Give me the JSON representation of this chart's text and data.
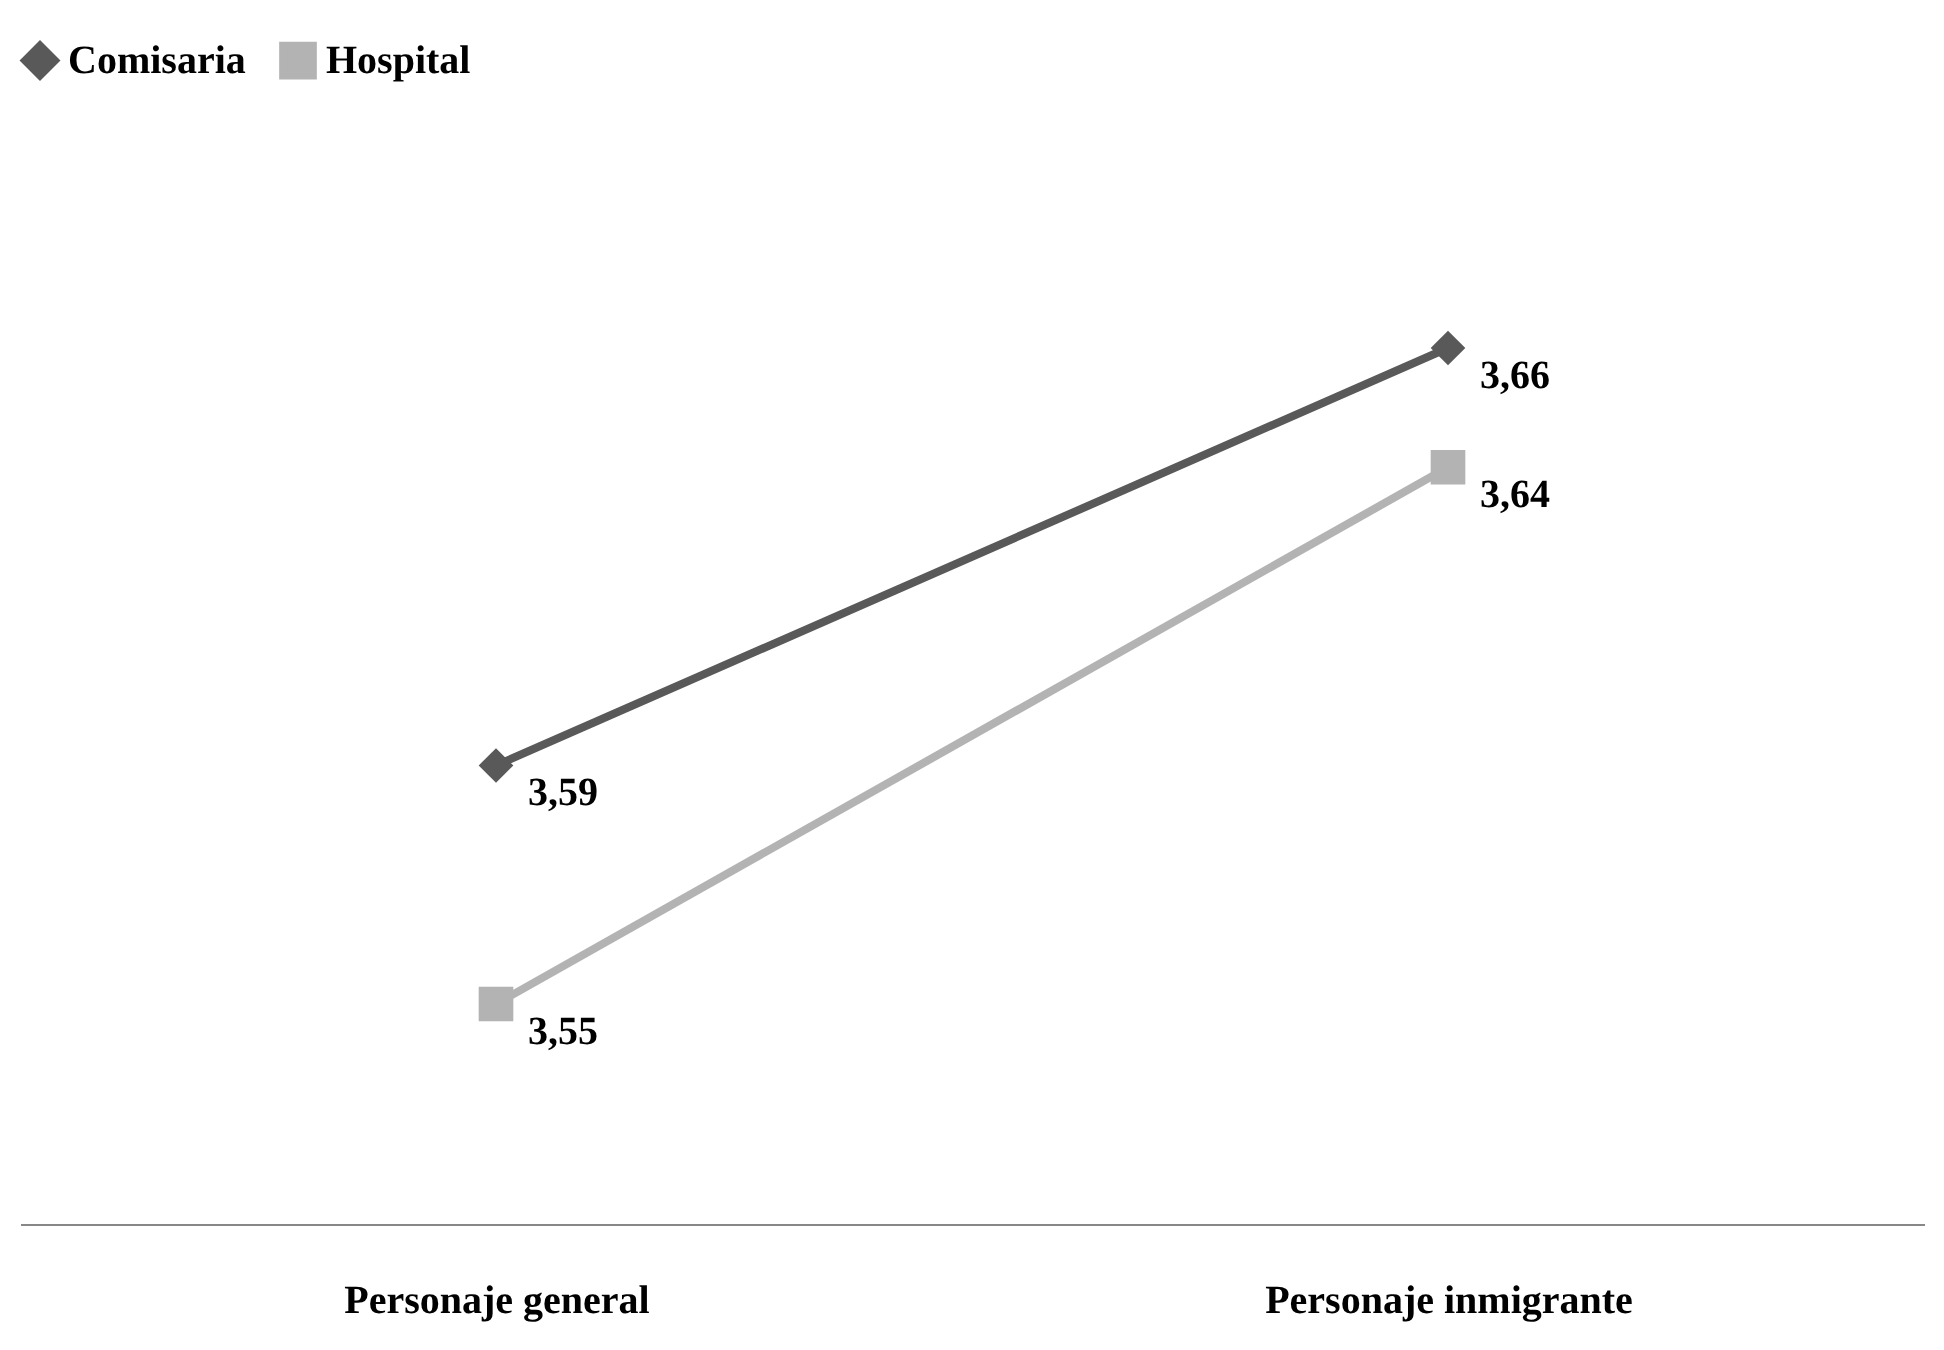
{
  "chart_data": {
    "type": "line",
    "categories": [
      "Personaje general",
      "Personaje inmigrante"
    ],
    "series": [
      {
        "name": "Comisaria",
        "color": "#595959",
        "marker": "diamond",
        "values": [
          3.59,
          3.66
        ],
        "value_labels": [
          "3,59",
          "3,66"
        ]
      },
      {
        "name": "Hospital",
        "color": "#b3b3b3",
        "marker": "square",
        "values": [
          3.55,
          3.64
        ],
        "value_labels": [
          "3,55",
          "3,64"
        ]
      }
    ],
    "grid": false,
    "legend": "top",
    "line_style": "solid"
  }
}
